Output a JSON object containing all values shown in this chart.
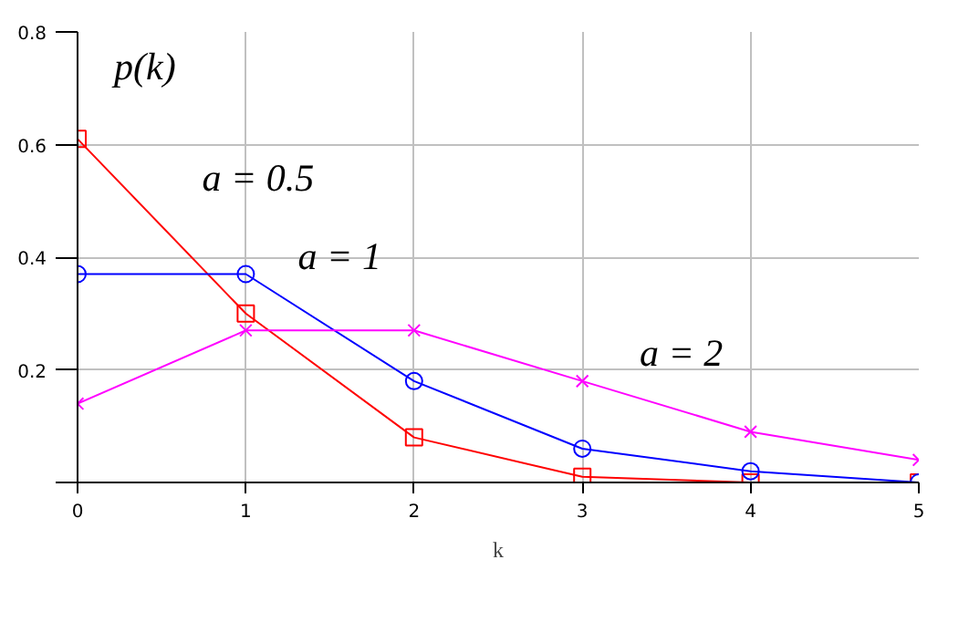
{
  "chart_data": {
    "type": "line",
    "xlabel": "k",
    "x": [
      0,
      1,
      2,
      3,
      4,
      5
    ],
    "series": [
      {
        "name": "a = 0.5",
        "color": "#ff0000",
        "marker": "square",
        "values": [
          0.61,
          0.3,
          0.08,
          0.01,
          0.0,
          0.0
        ]
      },
      {
        "name": "a = 1",
        "color": "#0000ff",
        "marker": "circle",
        "values": [
          0.37,
          0.37,
          0.18,
          0.06,
          0.02,
          0.0
        ]
      },
      {
        "name": "a = 2",
        "color": "#ff00ff",
        "marker": "cross",
        "values": [
          0.14,
          0.27,
          0.27,
          0.18,
          0.09,
          0.04
        ]
      }
    ],
    "xlim": [
      0,
      5
    ],
    "xticks": [
      0,
      1,
      2,
      3,
      4,
      5
    ],
    "ylim": [
      0,
      0.8
    ],
    "yticks": [
      {
        "value": 0,
        "label": null
      },
      0.2,
      0.4,
      0.6,
      0.8
    ],
    "grid": true,
    "ylabel": "p(k)"
  }
}
